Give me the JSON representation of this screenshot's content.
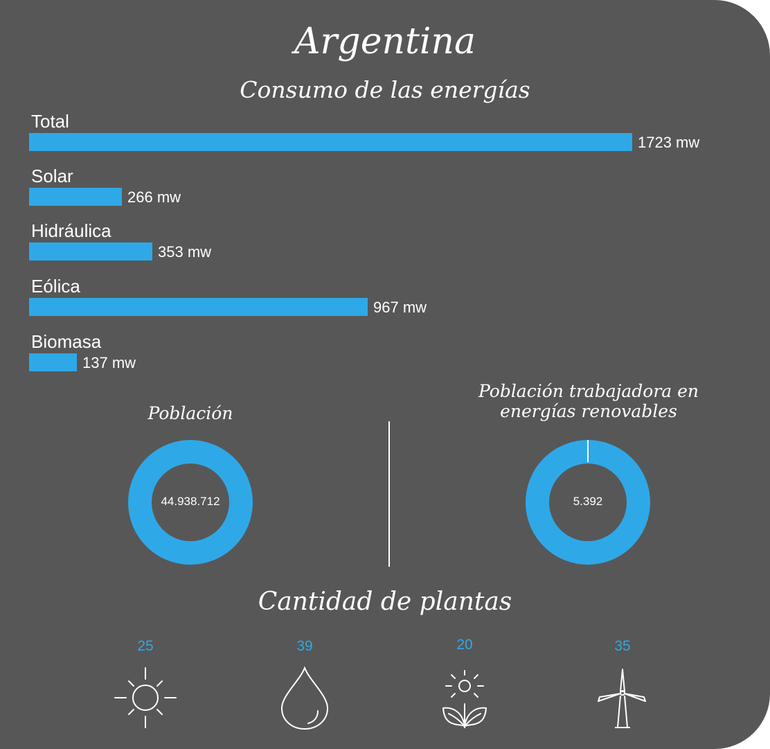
{
  "title": "Argentina",
  "subtitle": "Consumo de las energías",
  "accent_color": "#2fa8e8",
  "background_color": "#575757",
  "chart_data": [
    {
      "type": "bar",
      "orientation": "horizontal",
      "title": "Consumo de las energías",
      "categories": [
        "Total",
        "Solar",
        "Hidráulica",
        "Eólica",
        "Biomasa"
      ],
      "values": [
        1723,
        266,
        353,
        967,
        137
      ],
      "value_labels": [
        "1723 mw",
        "266 mw",
        "353 mw",
        "967 mw",
        "137 mw"
      ],
      "unit": "mw",
      "grid": false,
      "legend": "none"
    },
    {
      "type": "pie",
      "variant": "donut",
      "title": "Población",
      "center_label": "44.938.712",
      "values": [
        44938712
      ]
    },
    {
      "type": "pie",
      "variant": "donut",
      "title_lines": [
        "Población trabajadora en",
        "energías renovables"
      ],
      "center_label": "5.392",
      "values": [
        5392
      ]
    }
  ],
  "plants": {
    "title": "Cantidad de plantas",
    "items": [
      {
        "count": "25",
        "icon": "sun-icon"
      },
      {
        "count": "39",
        "icon": "water-drop-icon"
      },
      {
        "count": "20",
        "icon": "plant-sun-icon"
      },
      {
        "count": "35",
        "icon": "wind-turbine-icon"
      }
    ]
  }
}
